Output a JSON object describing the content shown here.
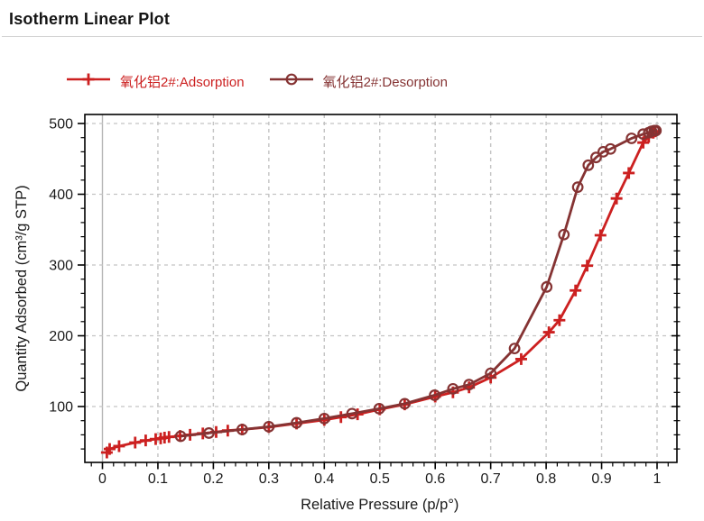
{
  "header": {
    "title": "Isotherm Linear Plot"
  },
  "legend": [
    {
      "label": "氧化铝2#:Adsorption",
      "color": "#cc2020",
      "marker": "plus"
    },
    {
      "label": "氧化铝2#:Desorption",
      "color": "#853333",
      "marker": "circle"
    }
  ],
  "chart_data": {
    "type": "line",
    "title": "Isotherm Linear Plot",
    "xlabel": "Relative Pressure (p/p°)",
    "ylabel": "Quantity Adsorbed (cm³/g STP)",
    "xlim": [
      -0.032,
      1.036
    ],
    "ylim": [
      21,
      513
    ],
    "x_ticks": [
      0,
      0.1,
      0.2,
      0.3,
      0.4,
      0.5,
      0.6,
      0.7,
      0.8,
      0.9,
      1
    ],
    "x_tick_labels": [
      "0",
      "0.1",
      "0.2",
      "0.3",
      "0.4",
      "0.5",
      "0.6",
      "0.7",
      "0.8",
      "0.9",
      "1"
    ],
    "y_ticks": [
      100,
      200,
      300,
      400,
      500
    ],
    "y_tick_labels": [
      "100",
      "200",
      "300",
      "400",
      "500"
    ],
    "minor_x_step": 0.02,
    "minor_y_step": 20,
    "grid": "dashed",
    "grid_color": "#c3c3c3",
    "legend_position": "top",
    "series": [
      {
        "name": "氧化铝2#:Adsorption",
        "color": "#cc2020",
        "marker": "plus",
        "points": [
          [
            0.008,
            35
          ],
          [
            0.013,
            40
          ],
          [
            0.03,
            44
          ],
          [
            0.059,
            49
          ],
          [
            0.078,
            52
          ],
          [
            0.096,
            54
          ],
          [
            0.105,
            55
          ],
          [
            0.112,
            56
          ],
          [
            0.12,
            57
          ],
          [
            0.14,
            58.5
          ],
          [
            0.158,
            60
          ],
          [
            0.181,
            62
          ],
          [
            0.205,
            64
          ],
          [
            0.226,
            66
          ],
          [
            0.252,
            67.5
          ],
          [
            0.3,
            71
          ],
          [
            0.35,
            76
          ],
          [
            0.4,
            81
          ],
          [
            0.43,
            85
          ],
          [
            0.46,
            89
          ],
          [
            0.5,
            96
          ],
          [
            0.545,
            103
          ],
          [
            0.6,
            114
          ],
          [
            0.632,
            120
          ],
          [
            0.661,
            127
          ],
          [
            0.7,
            141
          ],
          [
            0.755,
            167
          ],
          [
            0.805,
            205
          ],
          [
            0.824,
            222
          ],
          [
            0.853,
            264
          ],
          [
            0.874,
            299
          ],
          [
            0.898,
            342
          ],
          [
            0.927,
            394
          ],
          [
            0.949,
            430
          ],
          [
            0.975,
            473
          ],
          [
            0.985,
            481
          ],
          [
            0.993,
            487
          ],
          [
            0.997,
            489
          ]
        ]
      },
      {
        "name": "氧化铝2#:Desorption",
        "color": "#853333",
        "marker": "circle",
        "points": [
          [
            0.141,
            58
          ],
          [
            0.192,
            62.5
          ],
          [
            0.252,
            67.5
          ],
          [
            0.3,
            71.5
          ],
          [
            0.35,
            77
          ],
          [
            0.4,
            83
          ],
          [
            0.45,
            90
          ],
          [
            0.499,
            97
          ],
          [
            0.545,
            104
          ],
          [
            0.599,
            116
          ],
          [
            0.632,
            125
          ],
          [
            0.661,
            131
          ],
          [
            0.7,
            147
          ],
          [
            0.743,
            182
          ],
          [
            0.801,
            269
          ],
          [
            0.832,
            343
          ],
          [
            0.857,
            410
          ],
          [
            0.876,
            441
          ],
          [
            0.89,
            452
          ],
          [
            0.903,
            460
          ],
          [
            0.916,
            464
          ],
          [
            0.954,
            479
          ],
          [
            0.975,
            485
          ],
          [
            0.985,
            487
          ],
          [
            0.99,
            489
          ],
          [
            0.995,
            490
          ],
          [
            0.998,
            490
          ]
        ]
      }
    ]
  }
}
